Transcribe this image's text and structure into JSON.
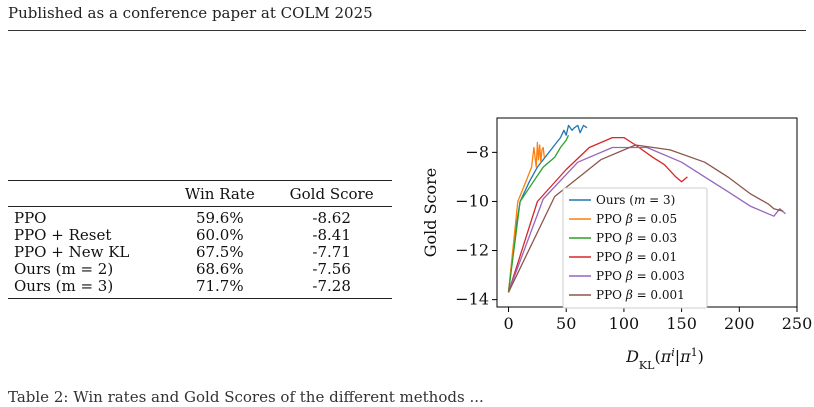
{
  "header": {
    "running_title": "Published as a conference paper at COLM 2025"
  },
  "table": {
    "columns": [
      "",
      "Win Rate",
      "Gold Score"
    ],
    "rows": [
      {
        "method": "PPO",
        "win_rate": "59.6%",
        "gold_score": "-8.62"
      },
      {
        "method": "PPO + Reset",
        "win_rate": "60.0%",
        "gold_score": "-8.41"
      },
      {
        "method": "PPO + New KL",
        "win_rate": "67.5%",
        "gold_score": "-7.71"
      },
      {
        "method": "Ours (m = 2)",
        "win_rate": "68.6%",
        "gold_score": "-7.56"
      },
      {
        "method": "Ours (m = 3)",
        "win_rate": "71.7%",
        "gold_score": "-7.28"
      }
    ]
  },
  "caption_fragment": "Table 2: Win rates and Gold Scores of the different methods ...",
  "chart_data": {
    "type": "line",
    "title": "",
    "xlabel": "D_KL(π^i|π^1)",
    "ylabel": "Gold Score",
    "xlim": [
      -10,
      250
    ],
    "ylim": [
      -14.3,
      -6.6
    ],
    "xticks": [
      0,
      50,
      100,
      150,
      200,
      250
    ],
    "yticks": [
      -14,
      -12,
      -10,
      -8
    ],
    "grid": false,
    "legend_position": "right",
    "series": [
      {
        "name": "Ours (m = 3)",
        "color": "#1f77b4",
        "x": [
          0,
          5,
          10,
          18,
          25,
          30,
          40,
          45,
          48,
          50,
          52,
          55,
          57,
          60,
          62,
          65,
          68
        ],
        "y": [
          -13.7,
          -11.5,
          -10.0,
          -9.2,
          -8.6,
          -8.3,
          -7.7,
          -7.4,
          -7.1,
          -7.3,
          -6.9,
          -7.1,
          -7.0,
          -6.9,
          -7.2,
          -6.9,
          -7.0
        ]
      },
      {
        "name": "PPO β = 0.05",
        "color": "#ff7f0e",
        "x": [
          0,
          8,
          15,
          20,
          22,
          24,
          25,
          26,
          27,
          28,
          29,
          30,
          31
        ],
        "y": [
          -13.7,
          -10.0,
          -9.2,
          -8.6,
          -7.8,
          -8.6,
          -7.6,
          -8.3,
          -7.7,
          -8.4,
          -7.9,
          -7.8,
          -8.2
        ]
      },
      {
        "name": "PPO β = 0.03",
        "color": "#2ca02c",
        "x": [
          0,
          10,
          20,
          30,
          40,
          45,
          50,
          52
        ],
        "y": [
          -13.7,
          -10.0,
          -9.3,
          -8.6,
          -8.2,
          -7.8,
          -7.5,
          -7.3
        ]
      },
      {
        "name": "PPO β = 0.01",
        "color": "#d62728",
        "x": [
          0,
          25,
          50,
          70,
          90,
          100,
          110,
          125,
          135,
          145,
          150,
          155
        ],
        "y": [
          -13.7,
          -10.0,
          -8.7,
          -7.8,
          -7.4,
          -7.4,
          -7.7,
          -8.2,
          -8.5,
          -9.0,
          -9.2,
          -9.0
        ]
      },
      {
        "name": "PPO β = 0.003",
        "color": "#9467bd",
        "x": [
          0,
          30,
          60,
          90,
          120,
          150,
          170,
          190,
          210,
          230,
          235,
          240
        ],
        "y": [
          -13.7,
          -9.9,
          -8.4,
          -7.8,
          -7.8,
          -8.4,
          -9.0,
          -9.6,
          -10.2,
          -10.6,
          -10.3,
          -10.5
        ]
      },
      {
        "name": "PPO β = 0.001",
        "color": "#8c564b",
        "x": [
          0,
          40,
          80,
          110,
          140,
          170,
          190,
          210,
          225,
          230,
          238
        ],
        "y": [
          -13.7,
          -9.8,
          -8.3,
          -7.7,
          -7.9,
          -8.4,
          -9.0,
          -9.7,
          -10.1,
          -10.3,
          -10.4
        ]
      }
    ]
  }
}
